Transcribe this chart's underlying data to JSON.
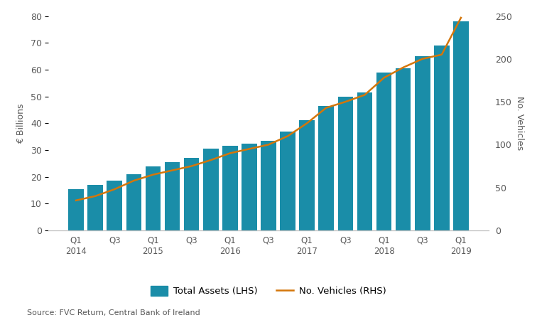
{
  "total_assets": [
    15.5,
    17.0,
    18.5,
    21.0,
    24.0,
    25.5,
    27.0,
    30.5,
    31.5,
    32.5,
    33.5,
    37.0,
    41.0,
    46.5,
    50.0,
    51.5,
    59.0,
    60.5,
    65.0,
    69.0,
    78.0
  ],
  "num_vehicles": [
    35,
    40,
    48,
    58,
    65,
    70,
    75,
    82,
    90,
    95,
    100,
    110,
    125,
    143,
    150,
    158,
    178,
    190,
    200,
    205,
    248
  ],
  "bar_color": "#1a8da8",
  "line_color": "#d4760a",
  "ylabel_left": "€ Billions",
  "ylabel_right": "No. Vehicles",
  "ylim_left": [
    0,
    80
  ],
  "ylim_right": [
    0,
    250
  ],
  "yticks_left": [
    0,
    10,
    20,
    30,
    40,
    50,
    60,
    70,
    80
  ],
  "yticks_right": [
    0,
    50,
    100,
    150,
    200,
    250
  ],
  "legend_labels": [
    "Total Assets (LHS)",
    "No. Vehicles (RHS)"
  ],
  "source_text": "Source: FVC Return, Central Bank of Ireland",
  "background_color": "#ffffff",
  "axis_label_color": "#595959",
  "tick_label_color": "#595959",
  "spine_color": "#c0c0c0"
}
